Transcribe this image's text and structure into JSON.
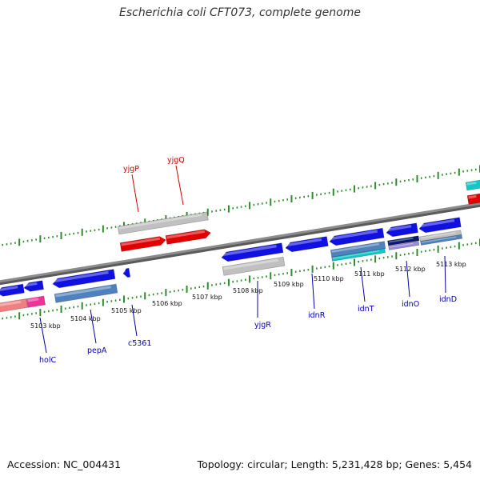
{
  "title": "Escherichia coli CFT073, complete genome",
  "footer": {
    "accession": "Accession: NC_004431",
    "topology": "Topology: circular; Length: 5,231,428 bp; Genes: 5,454"
  },
  "colors": {
    "backbone": "#8c8c8c",
    "tick": "#2e8b2e",
    "forward_label": "#d40000",
    "reverse_label": "#0000a8",
    "cds_red": "#e00000",
    "cds_blue": "#1010e0",
    "cds_grey": "#c0c0c0",
    "cds_steel": "#4f81bd",
    "cds_cyan": "#10c8c8",
    "cds_pink": "#ee3399",
    "cds_salmon": "#f08080",
    "cds_navy": "#0a1a6a",
    "cds_lavender": "#9a8ad8"
  },
  "scale_labels": [
    "5103 kbp",
    "5104 kbp",
    "5105 kbp",
    "5106 kbp",
    "5107 kbp",
    "5108 kbp",
    "5109 kbp",
    "5110 kbp",
    "5111 kbp",
    "5112 kbp",
    "5113 kbp"
  ],
  "forward_gene_labels": [
    "yjgP",
    "yjgQ"
  ],
  "reverse_gene_labels": [
    "holC",
    "pepA",
    "c5361",
    "yjgR",
    "idnR",
    "idnT",
    "idnO",
    "idnD"
  ]
}
